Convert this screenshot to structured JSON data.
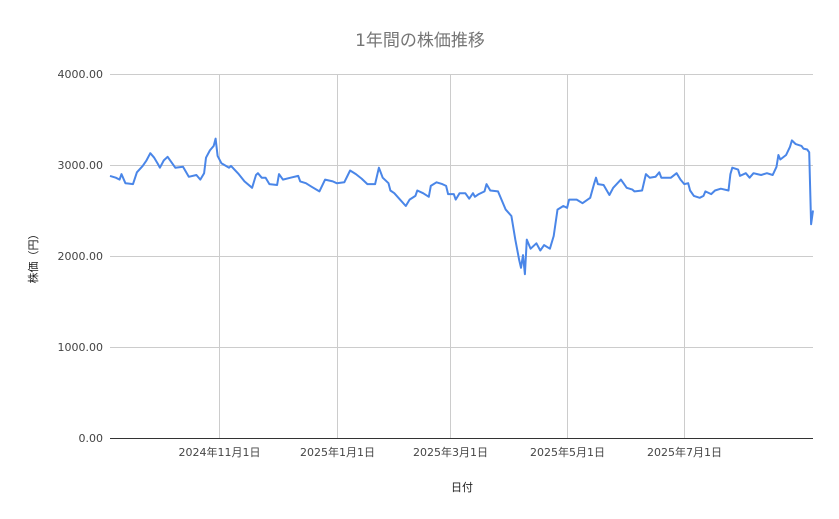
{
  "chart_data": {
    "type": "line",
    "title": "1年間の株価推移",
    "xlabel": "日付",
    "ylabel": "株価（円）",
    "xlim": [
      "2024-09-05",
      "2025-09-06"
    ],
    "ylim": [
      0,
      4000
    ],
    "yticks": [
      0,
      1000,
      2000,
      3000,
      4000
    ],
    "ytick_labels": [
      "0.00",
      "1000.00",
      "2000.00",
      "3000.00",
      "4000.00"
    ],
    "xticks": [
      "2024-11-01",
      "2025-01-01",
      "2025-03-01",
      "2025-05-01",
      "2025-07-01"
    ],
    "xtick_labels": [
      "2024年11月1日",
      "2025年1月1日",
      "2025年3月1日",
      "2025年5月1日",
      "2025年7月1日"
    ],
    "grid": true,
    "legend": "none",
    "colors": {
      "line": "#4a86e8",
      "grid": "#cccccc",
      "axis": "#333333"
    },
    "series": [
      {
        "x": [
          "2024-09-05",
          "2024-09-08",
          "2024-09-10",
          "2024-09-11",
          "2024-09-13",
          "2024-09-17",
          "2024-09-19",
          "2024-09-22",
          "2024-09-24",
          "2024-09-26",
          "2024-09-28",
          "2024-09-30",
          "2024-10-01",
          "2024-10-03",
          "2024-10-05",
          "2024-10-07",
          "2024-10-09",
          "2024-10-13",
          "2024-10-16",
          "2024-10-20",
          "2024-10-22",
          "2024-10-24",
          "2024-10-25",
          "2024-10-27",
          "2024-10-29",
          "2024-10-30",
          "2024-10-31",
          "2024-11-02",
          "2024-11-06",
          "2024-11-07",
          "2024-11-11",
          "2024-11-14",
          "2024-11-18",
          "2024-11-20",
          "2024-11-21",
          "2024-11-23",
          "2024-11-25",
          "2024-11-27",
          "2024-12-01",
          "2024-12-02",
          "2024-12-04",
          "2024-12-08",
          "2024-12-12",
          "2024-12-13",
          "2024-12-16",
          "2024-12-19",
          "2024-12-23",
          "2024-12-26",
          "2024-12-30",
          "2025-01-01",
          "2025-01-05",
          "2025-01-08",
          "2025-01-11",
          "2025-01-14",
          "2025-01-17",
          "2025-01-21",
          "2025-01-23",
          "2025-01-25",
          "2025-01-28",
          "2025-01-29",
          "2025-01-31",
          "2025-02-03",
          "2025-02-06",
          "2025-02-08",
          "2025-02-11",
          "2025-02-12",
          "2025-02-15",
          "2025-02-18",
          "2025-02-19",
          "2025-02-22",
          "2025-02-25",
          "2025-02-27",
          "2025-02-28",
          "2025-03-03",
          "2025-03-04",
          "2025-03-06",
          "2025-03-09",
          "2025-03-11",
          "2025-03-13",
          "2025-03-14",
          "2025-03-16",
          "2025-03-19",
          "2025-03-20",
          "2025-03-22",
          "2025-03-26",
          "2025-03-27",
          "2025-03-30",
          "2025-04-02",
          "2025-04-04",
          "2025-04-06",
          "2025-04-07",
          "2025-04-08",
          "2025-04-09",
          "2025-04-10",
          "2025-04-12",
          "2025-04-15",
          "2025-04-17",
          "2025-04-19",
          "2025-04-22",
          "2025-04-24",
          "2025-04-26",
          "2025-04-29",
          "2025-05-01",
          "2025-05-02",
          "2025-05-06",
          "2025-05-09",
          "2025-05-13",
          "2025-05-15",
          "2025-05-16",
          "2025-05-17",
          "2025-05-20",
          "2025-05-23",
          "2025-05-25",
          "2025-05-29",
          "2025-06-01",
          "2025-06-04",
          "2025-06-05",
          "2025-06-09",
          "2025-06-11",
          "2025-06-13",
          "2025-06-16",
          "2025-06-18",
          "2025-06-19",
          "2025-06-24",
          "2025-06-27",
          "2025-06-29",
          "2025-07-01",
          "2025-07-03",
          "2025-07-04",
          "2025-07-06",
          "2025-07-09",
          "2025-07-11",
          "2025-07-12",
          "2025-07-15",
          "2025-07-17",
          "2025-07-20",
          "2025-07-24",
          "2025-07-25",
          "2025-07-26",
          "2025-07-29",
          "2025-07-30",
          "2025-08-02",
          "2025-08-04",
          "2025-08-06",
          "2025-08-08",
          "2025-08-10",
          "2025-08-13",
          "2025-08-16",
          "2025-08-18",
          "2025-08-19",
          "2025-08-20",
          "2025-08-23",
          "2025-08-25",
          "2025-08-26",
          "2025-08-28",
          "2025-08-31",
          "2025-09-01",
          "2025-09-03",
          "2025-09-04",
          "2025-09-05",
          "2025-09-06"
        ],
        "y": [
          2880,
          2860,
          2840,
          2900,
          2800,
          2790,
          2920,
          2990,
          3050,
          3130,
          3080,
          3010,
          2970,
          3050,
          3090,
          3030,
          2970,
          2980,
          2870,
          2890,
          2840,
          2910,
          3080,
          3160,
          3210,
          3290,
          3100,
          3020,
          2970,
          2990,
          2900,
          2820,
          2750,
          2890,
          2910,
          2860,
          2860,
          2790,
          2780,
          2900,
          2840,
          2860,
          2880,
          2820,
          2800,
          2760,
          2710,
          2840,
          2820,
          2800,
          2810,
          2940,
          2900,
          2850,
          2790,
          2790,
          2970,
          2860,
          2800,
          2720,
          2690,
          2620,
          2550,
          2620,
          2660,
          2720,
          2690,
          2650,
          2770,
          2810,
          2790,
          2770,
          2680,
          2680,
          2620,
          2690,
          2690,
          2630,
          2690,
          2650,
          2680,
          2710,
          2790,
          2720,
          2710,
          2660,
          2510,
          2440,
          2180,
          1960,
          1870,
          2010,
          1800,
          2180,
          2080,
          2140,
          2060,
          2120,
          2080,
          2220,
          2510,
          2550,
          2530,
          2620,
          2620,
          2580,
          2640,
          2790,
          2860,
          2790,
          2780,
          2670,
          2750,
          2840,
          2750,
          2730,
          2710,
          2720,
          2900,
          2860,
          2870,
          2920,
          2860,
          2860,
          2910,
          2840,
          2790,
          2800,
          2720,
          2660,
          2640,
          2660,
          2710,
          2680,
          2720,
          2740,
          2720,
          2900,
          2970,
          2950,
          2880,
          2910,
          2860,
          2910,
          2900,
          2890,
          2910,
          2890,
          2980,
          3110,
          3060,
          3110,
          3200,
          3270,
          3230,
          3210,
          3180,
          3170,
          3140,
          2350,
          2500
        ]
      }
    ]
  }
}
